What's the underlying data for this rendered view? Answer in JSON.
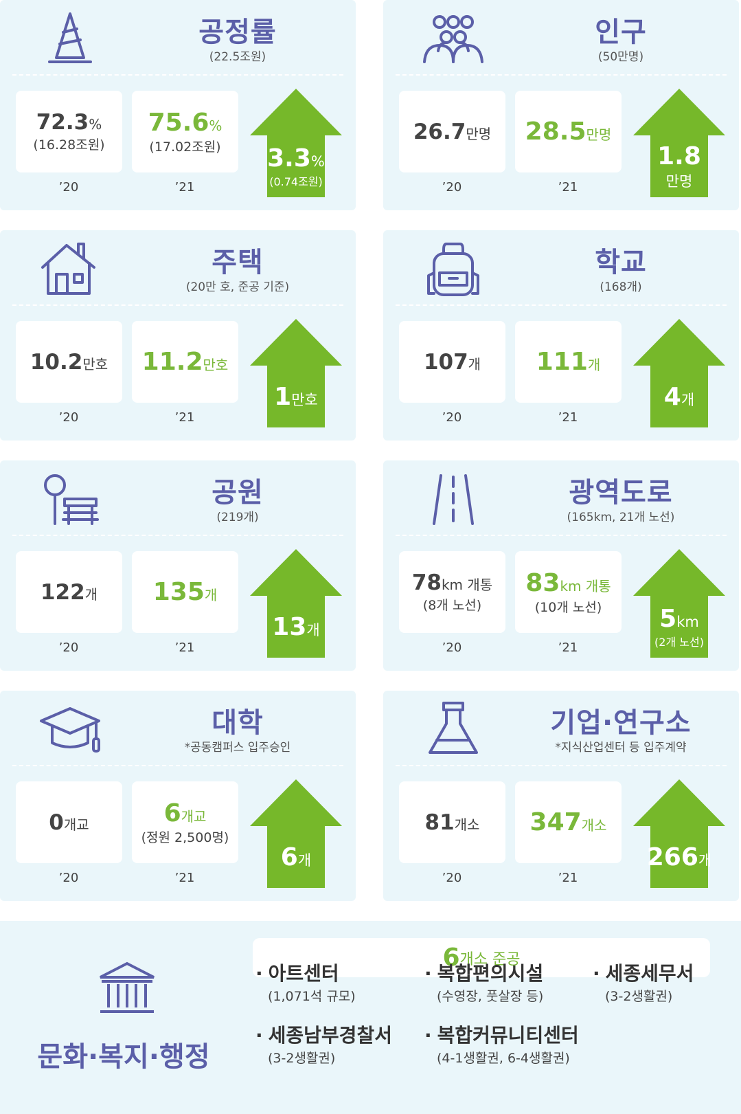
{
  "cards": [
    {
      "title": "공정률",
      "subtitle": "(22.5조원)",
      "before": {
        "value": "72.3",
        "unit": "%",
        "note": "(16.28조원)"
      },
      "after": {
        "value": "75.6",
        "unit": "%",
        "note": "(17.02조원)"
      },
      "change": {
        "value": "3.3",
        "unit": "%",
        "note": "(0.74조원)"
      },
      "years": [
        "’20",
        "’21"
      ]
    },
    {
      "title": "인구",
      "subtitle": "(50만명)",
      "before": {
        "value": "26.7",
        "unit": "만명"
      },
      "after": {
        "value": "28.5",
        "unit": "만명"
      },
      "change": {
        "value": "1.8",
        "unit": "만명"
      },
      "years": [
        "’20",
        "’21"
      ]
    },
    {
      "title": "주택",
      "subtitle": "(20만 호, 준공 기준)",
      "before": {
        "value": "10.2",
        "unit": "만호"
      },
      "after": {
        "value": "11.2",
        "unit": "만호"
      },
      "change": {
        "value": "1",
        "unit": "만호"
      },
      "years": [
        "’20",
        "’21"
      ]
    },
    {
      "title": "학교",
      "subtitle": "(168개)",
      "before": {
        "value": "107",
        "unit": "개"
      },
      "after": {
        "value": "111",
        "unit": "개"
      },
      "change": {
        "value": "4",
        "unit": "개"
      },
      "years": [
        "’20",
        "’21"
      ]
    },
    {
      "title": "공원",
      "subtitle": "(219개)",
      "before": {
        "value": "122",
        "unit": "개"
      },
      "after": {
        "value": "135",
        "unit": "개"
      },
      "change": {
        "value": "13",
        "unit": "개"
      },
      "years": [
        "’20",
        "’21"
      ]
    },
    {
      "title": "광역도로",
      "subtitle": "(165km, 21개 노선)",
      "before": {
        "value": "78",
        "unit": "km 개통",
        "note": "(8개 노선)"
      },
      "after": {
        "value": "83",
        "unit": "km 개통",
        "note": "(10개 노선)"
      },
      "change": {
        "value": "5",
        "unit": "km",
        "note": "(2개 노선)"
      },
      "years": [
        "’20",
        "’21"
      ]
    },
    {
      "title": "대학",
      "subtitle": "*공동캠퍼스 입주승인",
      "before": {
        "value": "0",
        "unit": "개교"
      },
      "after": {
        "value": "6",
        "unit": "개교",
        "note": "(정원 2,500명)"
      },
      "change": {
        "value": "6",
        "unit": "개"
      },
      "years": [
        "’20",
        "’21"
      ]
    },
    {
      "title": "기업·연구소",
      "subtitle": "*지식산업센터 등 입주계약",
      "before": {
        "value": "81",
        "unit": "개소"
      },
      "after": {
        "value": "347",
        "unit": "개소"
      },
      "change": {
        "value": "266",
        "unit": "개"
      },
      "years": [
        "’20",
        "’21"
      ]
    }
  ],
  "summary": {
    "title": "문화·복지·행정",
    "badge": {
      "value": "6",
      "unit": "개소 준공"
    },
    "items": [
      {
        "name": "아트센터",
        "note": "(1,071석 규모)"
      },
      {
        "name": "복합편의시설",
        "note": "(수영장, 풋살장 등)"
      },
      {
        "name": "세종세무서",
        "note": "(3-2생활권)"
      },
      {
        "name": "세종남부경찰서",
        "note": "(3-2생활권)"
      },
      {
        "name": "복합커뮤니티센터",
        "note": "(4-1생활권, 6-4생활권)"
      }
    ]
  }
}
